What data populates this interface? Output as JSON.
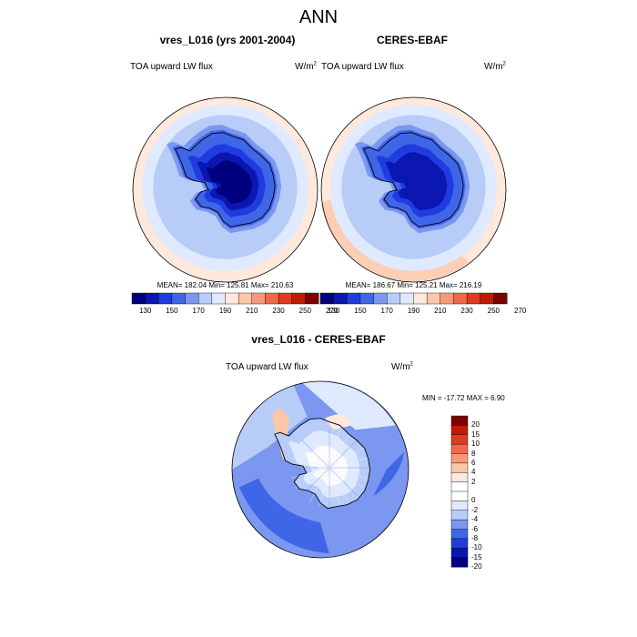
{
  "figure": {
    "title": "ANN"
  },
  "panels": [
    {
      "id": "model",
      "title": "vres_L016 (yrs 2001-2004)",
      "left_label": "TOA upward LW flux",
      "right_label": "W/m",
      "right_label_sup": "2",
      "stats": "MEAN= 182.04  Min= 125.81  Max= 210.63",
      "continent_min_level": 0
    },
    {
      "id": "obs",
      "title": "CERES-EBAF",
      "left_label": "TOA upward LW flux",
      "right_label": "W/m",
      "right_label_sup": "2",
      "stats": "MEAN= 186.67  Min= 125.21  Max= 216.19",
      "continent_min_level": 1
    }
  ],
  "difference": {
    "title": "vres_L016 - CERES-EBAF",
    "left_label": "TOA upward LW flux",
    "right_label": "W/m",
    "right_label_sup": "2",
    "stats": "MIN = -17.72 MAX =   6.90"
  },
  "colorbar_abs": {
    "labels": [
      "130",
      "150",
      "170",
      "190",
      "210",
      "230",
      "250",
      "270"
    ],
    "colors": [
      "#00007f",
      "#0b17b0",
      "#1f3ce0",
      "#4066e8",
      "#7b97f0",
      "#b7cdf8",
      "#dfe9ff",
      "#ffe8dc",
      "#fcc6aa",
      "#f8987a",
      "#f06848",
      "#e03a20",
      "#c01a08",
      "#7f0000"
    ]
  },
  "colorbar_diff": {
    "labels": [
      "20",
      "15",
      "10",
      "8",
      "6",
      "4",
      "2",
      "0",
      "-2",
      "-4",
      "-6",
      "-8",
      "-10",
      "-15",
      "-20"
    ],
    "colors": [
      "#7f0000",
      "#c01a08",
      "#e03a20",
      "#f06848",
      "#f8987a",
      "#fcc6aa",
      "#ffe8dc",
      "#ffffff",
      "#dfe9ff",
      "#b7cdf8",
      "#7b97f0",
      "#4066e8",
      "#1f3ce0",
      "#0b17b0",
      "#00007f"
    ]
  }
}
